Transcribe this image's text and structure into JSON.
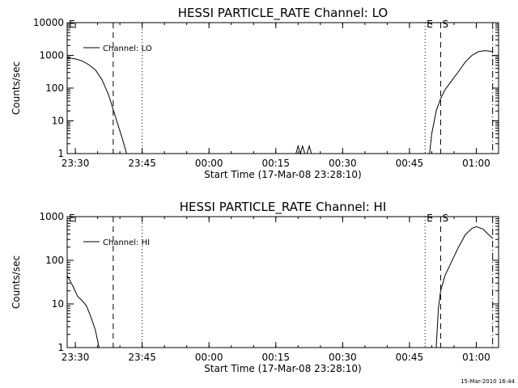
{
  "chart_data": [
    {
      "type": "line",
      "title": "HESSI PARTICLE_RATE Channel: LO",
      "xlabel": "Start Time (17-Mar-08 23:28:10)",
      "ylabel": "Counts/sec",
      "y_scale": "log",
      "ylim": [
        1,
        10000
      ],
      "xlim": [
        "23:28:10",
        "01:05:00"
      ],
      "grid": false,
      "legend_placement": "top-left",
      "x_ticks": [
        "23:30",
        "23:45",
        "00:00",
        "00:15",
        "00:30",
        "00:45",
        "01:00"
      ],
      "y_ticks": [
        "1",
        "10",
        "100",
        "1000",
        "10000"
      ],
      "series": [
        {
          "name": "Channel: LO",
          "points": [
            [
              "23:28:10",
              850
            ],
            [
              "23:30:00",
              780
            ],
            [
              "23:31:30",
              680
            ],
            [
              "23:33:00",
              520
            ],
            [
              "23:34:30",
              360
            ],
            [
              "23:36:00",
              180
            ],
            [
              "23:37:30",
              60
            ],
            [
              "23:38:30",
              22
            ],
            [
              "23:39:30",
              8
            ],
            [
              "23:40:30",
              3
            ],
            [
              "23:41:30",
              1
            ]
          ]
        },
        {
          "name": "Channel: LO",
          "points": [
            [
              "00:19:30",
              1
            ],
            [
              "00:20:00",
              1.7
            ],
            [
              "00:20:30",
              1
            ],
            [
              "00:21:00",
              1.7
            ],
            [
              "00:21:30",
              1
            ]
          ]
        },
        {
          "name": "Channel: LO",
          "points": [
            [
              "00:22:00",
              1
            ],
            [
              "00:22:30",
              1.7
            ],
            [
              "00:23:00",
              1
            ]
          ]
        },
        {
          "name": "Channel: LO",
          "points": [
            [
              "00:49:30",
              1
            ],
            [
              "00:50:00",
              4
            ],
            [
              "00:51:00",
              20
            ],
            [
              "00:52:00",
              48
            ],
            [
              "00:53:00",
              90
            ],
            [
              "00:54:30",
              170
            ],
            [
              "00:56:00",
              320
            ],
            [
              "00:57:30",
              620
            ],
            [
              "00:59:00",
              1000
            ],
            [
              "01:00:30",
              1300
            ],
            [
              "01:02:00",
              1400
            ],
            [
              "01:03:40",
              1300
            ]
          ]
        }
      ],
      "markers": [
        {
          "label": "E",
          "time": "23:28:10",
          "style": "dotted"
        },
        {
          "label": "",
          "time": "23:38:30",
          "style": "dashed"
        },
        {
          "label": "",
          "time": "23:45:00",
          "style": "dotted"
        },
        {
          "label": "E",
          "time": "00:48:30",
          "style": "dotted"
        },
        {
          "label": "S",
          "time": "00:52:00",
          "style": "dashed"
        },
        {
          "label": "",
          "time": "01:03:40",
          "style": "dashdot"
        }
      ]
    },
    {
      "type": "line",
      "title": "HESSI PARTICLE_RATE Channel: HI",
      "xlabel": "Start Time (17-Mar-08 23:28:10)",
      "ylabel": "Counts/sec",
      "y_scale": "log",
      "ylim": [
        1,
        1000
      ],
      "xlim": [
        "23:28:10",
        "01:05:00"
      ],
      "grid": false,
      "legend_placement": "top-left",
      "x_ticks": [
        "23:30",
        "23:45",
        "00:00",
        "00:15",
        "00:30",
        "00:45",
        "01:00"
      ],
      "y_ticks": [
        "1",
        "10",
        "100",
        "1000"
      ],
      "series": [
        {
          "name": "Channel: HI",
          "points": [
            [
              "23:28:10",
              45
            ],
            [
              "23:29:30",
              25
            ],
            [
              "23:30:30",
              15
            ],
            [
              "23:31:30",
              12
            ],
            [
              "23:32:30",
              9
            ],
            [
              "23:33:30",
              5
            ],
            [
              "23:34:30",
              2.5
            ],
            [
              "23:35:20",
              1
            ]
          ]
        },
        {
          "name": "Channel: HI",
          "points": [
            [
              "00:51:00",
              1
            ],
            [
              "00:51:30",
              8
            ],
            [
              "00:52:00",
              20
            ],
            [
              "00:53:00",
              45
            ],
            [
              "00:54:30",
              95
            ],
            [
              "00:56:00",
              200
            ],
            [
              "00:57:30",
              380
            ],
            [
              "00:59:00",
              540
            ],
            [
              "01:00:00",
              590
            ],
            [
              "01:01:30",
              520
            ],
            [
              "01:02:30",
              410
            ],
            [
              "01:03:40",
              320
            ]
          ]
        }
      ],
      "markers": [
        {
          "label": "E",
          "time": "23:28:10",
          "style": "dotted"
        },
        {
          "label": "",
          "time": "23:38:30",
          "style": "dashed"
        },
        {
          "label": "",
          "time": "23:45:00",
          "style": "dotted"
        },
        {
          "label": "E",
          "time": "00:48:30",
          "style": "dotted"
        },
        {
          "label": "S",
          "time": "00:52:00",
          "style": "dashed"
        },
        {
          "label": "",
          "time": "01:03:40",
          "style": "dashdot"
        }
      ]
    }
  ],
  "footer": {
    "timestamp": "15-Mar-2010 16:44"
  }
}
